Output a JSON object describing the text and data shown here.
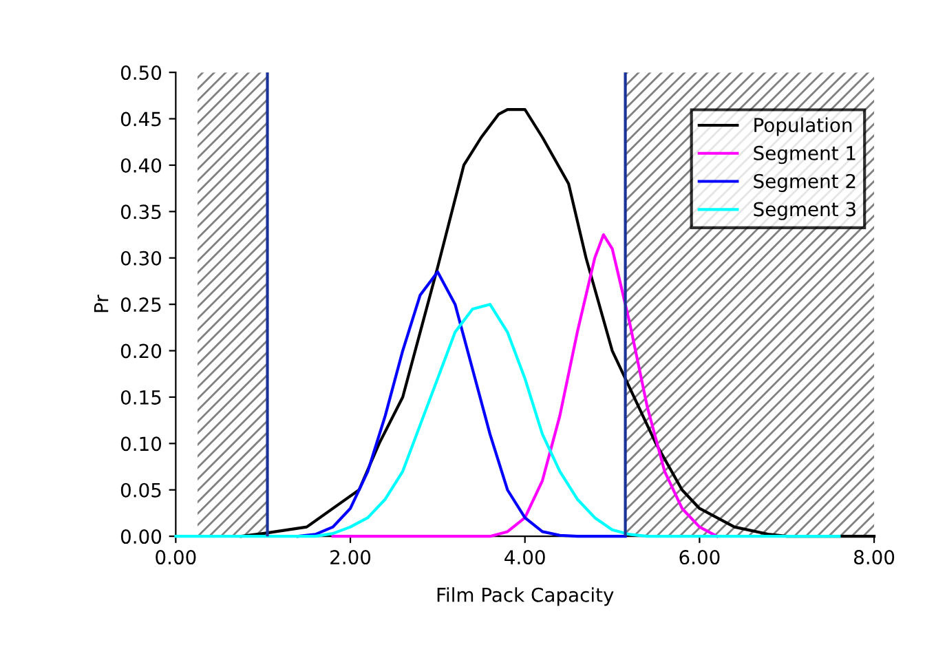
{
  "chart_data": {
    "type": "line",
    "xlabel": "Film Pack Capacity",
    "ylabel": "Pr",
    "xlim": [
      0,
      8
    ],
    "ylim": [
      0,
      0.5
    ],
    "xticks": [
      {
        "value": 0,
        "label": "0.00"
      },
      {
        "value": 2,
        "label": "2.00"
      },
      {
        "value": 4,
        "label": "4.00"
      },
      {
        "value": 6,
        "label": "6.00"
      },
      {
        "value": 8,
        "label": "8.00"
      }
    ],
    "yticks": [
      {
        "value": 0,
        "label": "0.00"
      },
      {
        "value": 0.05,
        "label": "0.05"
      },
      {
        "value": 0.1,
        "label": "0.10"
      },
      {
        "value": 0.15,
        "label": "0.15"
      },
      {
        "value": 0.2,
        "label": "0.20"
      },
      {
        "value": 0.25,
        "label": "0.25"
      },
      {
        "value": 0.3,
        "label": "0.30"
      },
      {
        "value": 0.35,
        "label": "0.35"
      },
      {
        "value": 0.4,
        "label": "0.40"
      },
      {
        "value": 0.45,
        "label": "0.45"
      },
      {
        "value": 0.5,
        "label": "0.50"
      }
    ],
    "grid": false,
    "legend": "top right",
    "marker": "none",
    "line_style": "solid",
    "series": [
      {
        "name": "Population",
        "color": "#000000",
        "x": [
          0.75,
          1.0,
          1.5,
          2.1,
          2.33,
          2.6,
          2.8,
          3.0,
          3.3,
          3.5,
          3.7,
          3.8,
          4.0,
          4.2,
          4.5,
          4.7,
          5.0,
          5.25,
          5.5,
          5.8,
          6.0,
          6.4,
          6.8,
          7.0,
          8.0
        ],
        "values": [
          0,
          0.003,
          0.01,
          0.05,
          0.1,
          0.15,
          0.22,
          0.29,
          0.4,
          0.43,
          0.455,
          0.46,
          0.46,
          0.43,
          0.38,
          0.3,
          0.2,
          0.15,
          0.1,
          0.05,
          0.03,
          0.01,
          0.002,
          0,
          0
        ]
      },
      {
        "name": "Segment 1",
        "color": "#ff00ff",
        "x": [
          1.8,
          3.6,
          3.8,
          4.0,
          4.2,
          4.4,
          4.6,
          4.8,
          4.9,
          5.0,
          5.2,
          5.4,
          5.6,
          5.8,
          6.0,
          6.2
        ],
        "values": [
          0,
          0,
          0.005,
          0.02,
          0.06,
          0.13,
          0.22,
          0.3,
          0.325,
          0.31,
          0.23,
          0.14,
          0.07,
          0.03,
          0.01,
          0
        ]
      },
      {
        "name": "Segment 2",
        "color": "#0000ff",
        "x": [
          1.4,
          1.6,
          1.8,
          2.0,
          2.2,
          2.4,
          2.6,
          2.8,
          3.0,
          3.2,
          3.4,
          3.6,
          3.8,
          4.0,
          4.2,
          4.4,
          4.6,
          5.15
        ],
        "values": [
          0,
          0.002,
          0.01,
          0.03,
          0.07,
          0.13,
          0.2,
          0.26,
          0.285,
          0.25,
          0.18,
          0.11,
          0.05,
          0.02,
          0.005,
          0.001,
          0,
          0
        ]
      },
      {
        "name": "Segment 3",
        "color": "#00ffff",
        "x": [
          0,
          1.6,
          1.8,
          2.0,
          2.2,
          2.4,
          2.6,
          2.8,
          3.0,
          3.2,
          3.4,
          3.6,
          3.8,
          4.0,
          4.2,
          4.4,
          4.6,
          4.8,
          5.0,
          5.2,
          5.4,
          7.6
        ],
        "values": [
          0,
          0,
          0.003,
          0.01,
          0.02,
          0.04,
          0.07,
          0.12,
          0.17,
          0.22,
          0.245,
          0.25,
          0.22,
          0.17,
          0.11,
          0.07,
          0.04,
          0.02,
          0.007,
          0.002,
          0,
          0
        ]
      }
    ],
    "ref_lines": [
      {
        "axis": "x",
        "value": 1.05,
        "color": "#1a3399"
      },
      {
        "axis": "x",
        "value": 5.15,
        "color": "#1a3399"
      }
    ],
    "bands": [
      {
        "axis": "x",
        "from": 0.25,
        "to": 1.05,
        "color": "#808080"
      },
      {
        "axis": "x",
        "from": 5.15,
        "to": 8.0,
        "color": "#808080"
      }
    ]
  }
}
